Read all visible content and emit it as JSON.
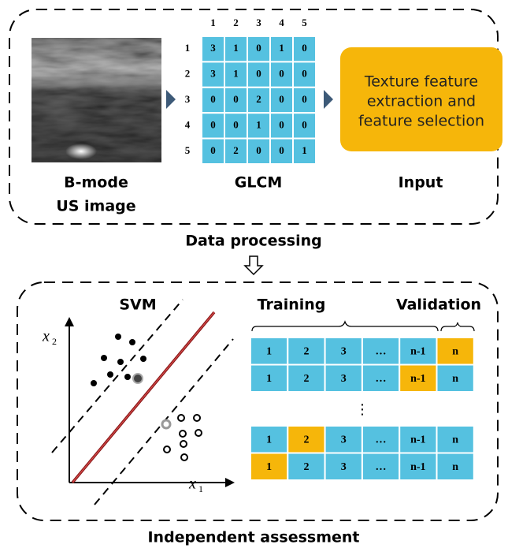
{
  "top_panel": {
    "image_label": [
      "B-mode",
      "US image"
    ],
    "glcm": {
      "label": "GLCM",
      "column_headers": [
        1,
        2,
        3,
        4,
        5
      ],
      "row_headers": [
        1,
        2,
        3,
        4,
        5
      ],
      "matrix": [
        [
          3,
          1,
          0,
          1,
          0
        ],
        [
          3,
          1,
          0,
          0,
          0
        ],
        [
          0,
          0,
          2,
          0,
          0
        ],
        [
          0,
          0,
          1,
          0,
          0
        ],
        [
          0,
          2,
          0,
          0,
          1
        ]
      ]
    },
    "input_box": {
      "lines": [
        "Texture feature",
        "extraction and",
        "feature selection"
      ],
      "label": "Input"
    },
    "caption": "Data processing"
  },
  "bottom_panel": {
    "svm": {
      "title": "SVM",
      "x_axis_label": "x",
      "x_axis_subscript": "1",
      "y_axis_label": "x",
      "y_axis_subscript": "2"
    },
    "training_label": "Training",
    "validation_label": "Validation",
    "folds_top": [
      [
        {
          "label": "1",
          "color": "#55c1e0"
        },
        {
          "label": "2",
          "color": "#55c1e0"
        },
        {
          "label": "3",
          "color": "#55c1e0"
        },
        {
          "label": "…",
          "color": "#55c1e0"
        },
        {
          "label": "n-1",
          "color": "#55c1e0"
        },
        {
          "label": "n",
          "color": "#f6b60a"
        }
      ],
      [
        {
          "label": "1",
          "color": "#55c1e0"
        },
        {
          "label": "2",
          "color": "#55c1e0"
        },
        {
          "label": "3",
          "color": "#55c1e0"
        },
        {
          "label": "…",
          "color": "#55c1e0"
        },
        {
          "label": "n-1",
          "color": "#f6b60a"
        },
        {
          "label": "n",
          "color": "#55c1e0"
        }
      ]
    ],
    "ellipsis": "⋮",
    "folds_bottom": [
      [
        {
          "label": "1",
          "color": "#55c1e0"
        },
        {
          "label": "2",
          "color": "#f6b60a"
        },
        {
          "label": "3",
          "color": "#55c1e0"
        },
        {
          "label": "…",
          "color": "#55c1e0"
        },
        {
          "label": "n-1",
          "color": "#55c1e0"
        },
        {
          "label": "n",
          "color": "#55c1e0"
        }
      ],
      [
        {
          "label": "1",
          "color": "#f6b60a"
        },
        {
          "label": "2",
          "color": "#55c1e0"
        },
        {
          "label": "3",
          "color": "#55c1e0"
        },
        {
          "label": "…",
          "color": "#55c1e0"
        },
        {
          "label": "n-1",
          "color": "#55c1e0"
        },
        {
          "label": "n",
          "color": "#55c1e0"
        }
      ]
    ],
    "caption": "Independent assessment"
  }
}
